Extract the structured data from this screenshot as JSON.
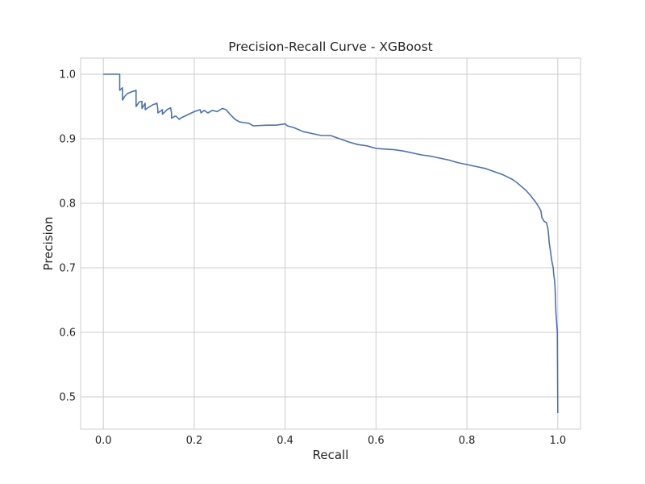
{
  "chart_data": {
    "type": "line",
    "title": "Precision-Recall Curve - XGBoost",
    "xlabel": "Recall",
    "ylabel": "Precision",
    "xlim": [
      -0.05,
      1.05
    ],
    "ylim": [
      0.45,
      1.025
    ],
    "xticks": [
      0.0,
      0.2,
      0.4,
      0.6,
      0.8,
      1.0
    ],
    "xtick_labels": [
      "0.0",
      "0.2",
      "0.4",
      "0.6",
      "0.8",
      "1.0"
    ],
    "yticks": [
      0.5,
      0.6,
      0.7,
      0.8,
      0.9,
      1.0
    ],
    "ytick_labels": [
      "0.5",
      "0.6",
      "0.7",
      "0.8",
      "0.9",
      "1.0"
    ],
    "grid": true,
    "series": [
      {
        "color": "#4c72b0",
        "x": [
          0.0,
          0.036,
          0.036,
          0.042,
          0.042,
          0.046,
          0.046,
          0.053,
          0.063,
          0.072,
          0.072,
          0.079,
          0.085,
          0.085,
          0.092,
          0.092,
          0.098,
          0.11,
          0.118,
          0.12,
          0.12,
          0.13,
          0.13,
          0.136,
          0.14,
          0.148,
          0.15,
          0.15,
          0.158,
          0.16,
          0.167,
          0.17,
          0.2,
          0.213,
          0.215,
          0.222,
          0.23,
          0.24,
          0.25,
          0.262,
          0.27,
          0.28,
          0.29,
          0.3,
          0.31,
          0.32,
          0.33,
          0.36,
          0.38,
          0.4,
          0.405,
          0.42,
          0.44,
          0.46,
          0.48,
          0.5,
          0.52,
          0.54,
          0.56,
          0.58,
          0.6,
          0.62,
          0.64,
          0.66,
          0.68,
          0.7,
          0.72,
          0.74,
          0.76,
          0.78,
          0.8,
          0.82,
          0.84,
          0.86,
          0.88,
          0.9,
          0.91,
          0.92,
          0.93,
          0.94,
          0.95,
          0.955,
          0.96,
          0.963,
          0.965,
          0.97,
          0.975,
          0.978,
          0.98,
          0.981,
          0.983,
          0.985,
          0.987,
          0.99,
          0.991,
          0.993,
          0.994,
          0.995,
          0.996,
          0.997,
          0.998,
          0.999,
          1.0
        ],
        "y": [
          1.0,
          1.0,
          0.975,
          0.979,
          0.96,
          0.964,
          0.965,
          0.97,
          0.973,
          0.975,
          0.95,
          0.957,
          0.958,
          0.947,
          0.955,
          0.945,
          0.948,
          0.953,
          0.955,
          0.945,
          0.94,
          0.945,
          0.938,
          0.942,
          0.945,
          0.948,
          0.94,
          0.932,
          0.935,
          0.935,
          0.93,
          0.932,
          0.942,
          0.945,
          0.94,
          0.944,
          0.94,
          0.944,
          0.942,
          0.947,
          0.945,
          0.937,
          0.93,
          0.926,
          0.925,
          0.924,
          0.92,
          0.921,
          0.921,
          0.923,
          0.92,
          0.917,
          0.911,
          0.908,
          0.905,
          0.905,
          0.9,
          0.895,
          0.891,
          0.889,
          0.885,
          0.884,
          0.883,
          0.881,
          0.878,
          0.875,
          0.873,
          0.87,
          0.867,
          0.863,
          0.86,
          0.857,
          0.854,
          0.849,
          0.844,
          0.837,
          0.832,
          0.826,
          0.82,
          0.812,
          0.803,
          0.798,
          0.792,
          0.788,
          0.778,
          0.772,
          0.77,
          0.762,
          0.75,
          0.74,
          0.73,
          0.72,
          0.71,
          0.7,
          0.69,
          0.68,
          0.67,
          0.65,
          0.63,
          0.62,
          0.61,
          0.6,
          0.475
        ]
      }
    ]
  }
}
